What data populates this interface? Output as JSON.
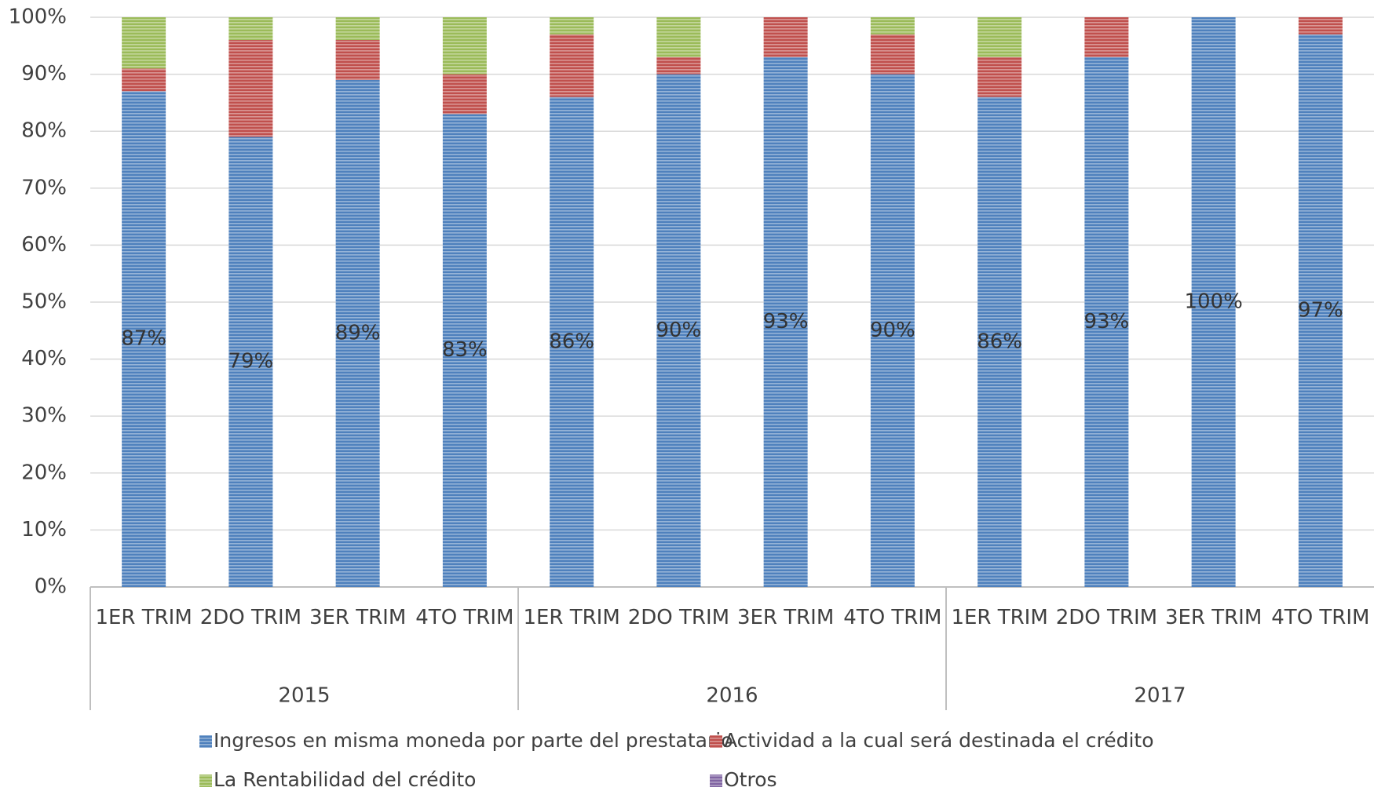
{
  "chart_data": {
    "type": "stacked-bar",
    "categories": [
      "1ER TRIM",
      "2DO TRIM",
      "3ER TRIM",
      "4TO TRIM",
      "1ER TRIM",
      "2DO TRIM",
      "3ER TRIM",
      "4TO TRIM",
      "1ER TRIM",
      "2DO TRIM",
      "3ER TRIM",
      "4TO TRIM"
    ],
    "groups": [
      {
        "label": "2015",
        "size": 4
      },
      {
        "label": "2016",
        "size": 4
      },
      {
        "label": "2017",
        "size": 4
      }
    ],
    "series": [
      {
        "name": "Ingresos en misma moneda por parte del prestatario",
        "color": "#4f81bd",
        "values": [
          87,
          79,
          89,
          83,
          86,
          90,
          93,
          90,
          86,
          93,
          100,
          97
        ],
        "value_labels": [
          "87%",
          "79%",
          "89%",
          "83%",
          "86%",
          "90%",
          "93%",
          "90%",
          "86%",
          "93%",
          "100%",
          "97%"
        ]
      },
      {
        "name": "Actividad a la cual será destinada el crédito",
        "color": "#c0504d",
        "values": [
          4,
          17,
          7,
          7,
          11,
          3,
          7,
          7,
          7,
          7,
          0,
          3
        ]
      },
      {
        "name": "La Rentabilidad del crédito",
        "color": "#9bbb59",
        "values": [
          9,
          4,
          4,
          10,
          3,
          7,
          0,
          3,
          7,
          0,
          0,
          0
        ]
      },
      {
        "name": "Otros",
        "color": "#8064a2",
        "values": [
          0,
          0,
          0,
          0,
          0,
          0,
          0,
          0,
          0,
          0,
          0,
          0
        ]
      }
    ],
    "ylim": [
      0,
      100
    ],
    "yticks": [
      {
        "value": 0,
        "label": "0%"
      },
      {
        "value": 10,
        "label": "10%"
      },
      {
        "value": 20,
        "label": "20%"
      },
      {
        "value": 30,
        "label": "30%"
      },
      {
        "value": 40,
        "label": "40%"
      },
      {
        "value": 50,
        "label": "50%"
      },
      {
        "value": 60,
        "label": "60%"
      },
      {
        "value": 70,
        "label": "70%"
      },
      {
        "value": 80,
        "label": "80%"
      },
      {
        "value": 90,
        "label": "90%"
      },
      {
        "value": 100,
        "label": "100%"
      }
    ],
    "grid": true,
    "legend": "bottom"
  }
}
